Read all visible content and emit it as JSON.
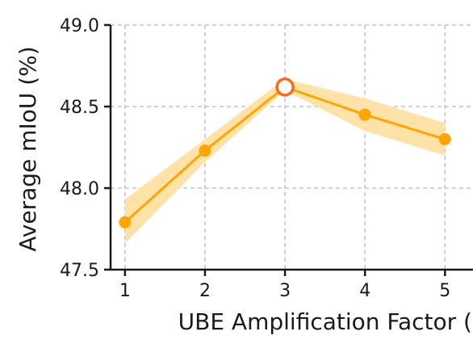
{
  "chart_data": {
    "type": "line",
    "xlabel": "UBE Amplification Factor (α)",
    "ylabel": "Average mIoU (%)",
    "x": [
      1,
      2,
      3,
      4,
      5
    ],
    "xticks": [
      "1",
      "2",
      "3",
      "4",
      "5"
    ],
    "xlim": [
      0.82,
      5.35
    ],
    "ylim": [
      47.5,
      49.0
    ],
    "yticks": [
      "47.5",
      "48.0",
      "48.5",
      "49.0"
    ],
    "series": [
      {
        "values": [
          47.79,
          48.23,
          48.62,
          48.45,
          48.3
        ],
        "band_lower": [
          47.66,
          48.16,
          48.6,
          48.35,
          48.2
        ],
        "band_upper": [
          47.93,
          48.3,
          48.67,
          48.55,
          48.4
        ],
        "color": "#FFA500",
        "band_color": "#FFE2A8",
        "highlight_index": 2,
        "highlight_edge_color": "#F26B21"
      }
    ],
    "grid": true,
    "legend": false
  }
}
